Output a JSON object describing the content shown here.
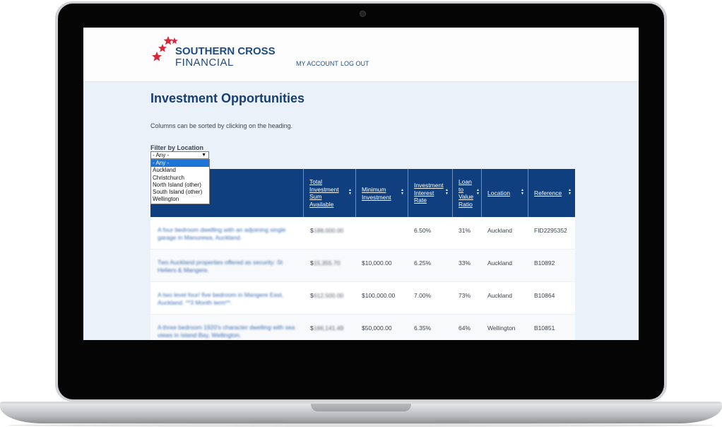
{
  "brand": {
    "line1": "SOUTHERN CROSS",
    "line2": "FINANCIAL"
  },
  "nav": {
    "my_account": "MY ACCOUNT",
    "log_out": "LOG OUT"
  },
  "page": {
    "title": "Investment Opportunities",
    "intro": "Columns can be sorted by clicking on the heading."
  },
  "filter": {
    "label": "Filter by Location",
    "selected": "- Any -",
    "options": [
      "- Any -",
      "Auckland",
      "Christchurch",
      "North Island (other)",
      "South Island (other)",
      "Wellington"
    ]
  },
  "table": {
    "headers": [
      "Total\nInvestment\nSum\nAvailable",
      "Minimum\nInvestment",
      "Investment\nInterest\nRate",
      "Loan\nto\nValue\nRatio",
      "Location",
      "Reference"
    ],
    "rows": [
      {
        "description": "A four bedroom dwelling with an adjoining single garage in Manurewa, Auckland.",
        "sum_prefix": "$",
        "sum_rest": "188,000.00",
        "minimum": "",
        "rate": "6.50%",
        "lvr": "31%",
        "location": "Auckland",
        "reference": "FID2295352"
      },
      {
        "description": "Two Auckland properties offered as security: St Heliers & Mangere.",
        "sum_prefix": "$",
        "sum_rest": "15,355.70",
        "minimum": "$10,000.00",
        "rate": "6.25%",
        "lvr": "33%",
        "location": "Auckland",
        "reference": "B10892"
      },
      {
        "description": "A two level four/ five bedroom in Mangere East, Auckland. **3 Month term**.",
        "sum_prefix": "$",
        "sum_rest": "612,500.00",
        "minimum": "$100,000.00",
        "rate": "7.00%",
        "lvr": "73%",
        "location": "Auckland",
        "reference": "B10864"
      },
      {
        "description": "A three bedroom 1920's character dwelling with sea views in Island Bay, Wellington.",
        "sum_prefix": "$",
        "sum_rest": "166,141.49",
        "minimum": "$50,000.00",
        "rate": "6.35%",
        "lvr": "64%",
        "location": "Wellington",
        "reference": "B10851"
      }
    ]
  },
  "icons": {
    "sort": "sort-arrows-icon",
    "logo_stars": "star-icon",
    "camera": "camera-icon"
  },
  "colors": {
    "brand": "#1c4c88",
    "header_bg": "#0f3f7e",
    "star": "#d9263a",
    "link": "#3b6db5"
  }
}
